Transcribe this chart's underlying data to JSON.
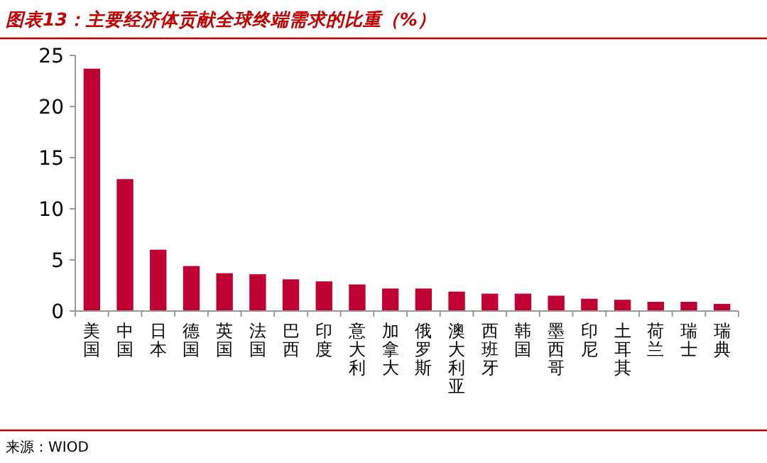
{
  "chart_data": {
    "type": "bar",
    "title": "图表13：主要经济体贡献全球终端需求的比重（%）",
    "categories": [
      "美国",
      "中国",
      "日本",
      "德国",
      "英国",
      "法国",
      "巴西",
      "印度",
      "意大利",
      "加拿大",
      "俄罗斯",
      "澳大利亚",
      "西班牙",
      "韩国",
      "墨西哥",
      "印尼",
      "土耳其",
      "荷兰",
      "瑞士",
      "瑞典"
    ],
    "values": [
      23.7,
      12.9,
      6.0,
      4.4,
      3.7,
      3.6,
      3.1,
      2.9,
      2.6,
      2.2,
      2.2,
      1.9,
      1.7,
      1.7,
      1.5,
      1.2,
      1.1,
      0.9,
      0.9,
      0.7
    ],
    "color": "#be0032",
    "ylim": [
      0,
      25
    ],
    "yticks": [
      0,
      5,
      10,
      15,
      20,
      25
    ],
    "grid": false,
    "annotations": [
      "来源：WIOD"
    ]
  }
}
